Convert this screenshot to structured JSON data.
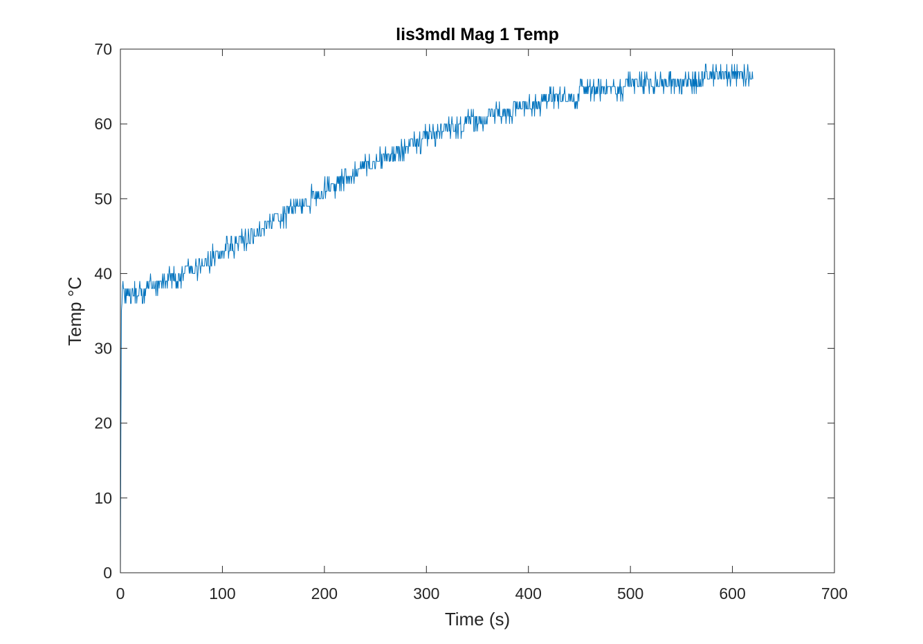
{
  "chart_data": {
    "type": "line",
    "title": "lis3mdl Mag 1 Temp",
    "xlabel": "Time (s)",
    "ylabel": "Temp °C",
    "xlim": [
      0,
      700
    ],
    "ylim": [
      0,
      70
    ],
    "xticks": [
      "0",
      "100",
      "200",
      "300",
      "400",
      "500",
      "600",
      "700"
    ],
    "yticks": [
      "0",
      "10",
      "20",
      "30",
      "40",
      "50",
      "60",
      "70"
    ],
    "grid": false,
    "legend": "none",
    "line_color": "#0072BD",
    "series": [
      {
        "x": [
          0,
          0.5,
          1,
          2,
          5,
          10,
          20,
          30,
          40,
          50,
          60,
          70,
          80,
          90,
          100,
          110,
          120,
          130,
          140,
          150,
          160,
          170,
          180,
          190,
          200,
          210,
          220,
          230,
          240,
          250,
          260,
          270,
          280,
          290,
          300,
          310,
          320,
          330,
          340,
          350,
          360,
          370,
          380,
          390,
          400,
          410,
          420,
          430,
          440,
          450,
          460,
          470,
          480,
          490,
          500,
          510,
          520,
          530,
          540,
          550,
          560,
          570,
          580,
          590,
          600,
          610,
          620
        ],
        "y": [
          0,
          20,
          35,
          37.5,
          37.5,
          37.6,
          37.8,
          38.2,
          38.7,
          39.3,
          39.9,
          40.6,
          41.3,
          42.0,
          42.8,
          43.6,
          44.4,
          45.2,
          46.0,
          46.9,
          47.7,
          48.6,
          49.4,
          50.3,
          51.1,
          51.9,
          52.7,
          53.5,
          54.3,
          55.0,
          55.7,
          56.4,
          57.0,
          57.6,
          58.1,
          58.7,
          59.2,
          59.7,
          60.1,
          60.6,
          61.0,
          61.4,
          61.8,
          62.2,
          62.5,
          62.9,
          63.2,
          63.5,
          63.8,
          64.0,
          64.3,
          64.5,
          64.7,
          64.9,
          65.1,
          65.3,
          65.4,
          65.6,
          65.7,
          65.8,
          65.9,
          66.0,
          66.1,
          66.2,
          66.2,
          66.3,
          66.3
        ]
      }
    ]
  }
}
